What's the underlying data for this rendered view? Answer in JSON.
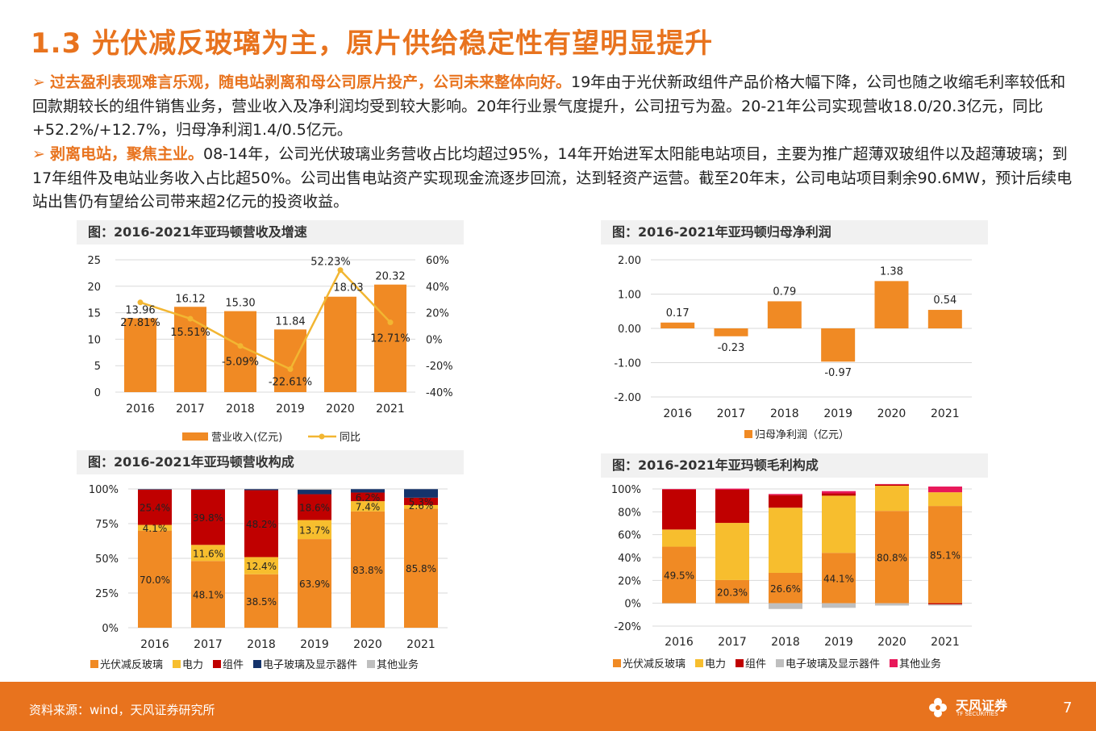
{
  "title": "1.3 光伏减反玻璃为主，原片供给稳定性有望明显提升",
  "bullets": [
    {
      "marker": "➢",
      "highlight": "过去盈利表现难言乐观，随电站剥离和母公司原片投产，公司未来整体向好。",
      "text": "19年由于光伏新政组件产品价格大幅下降，公司也随之收缩毛利率较低和回款期较长的组件销售业务，营业收入及净利润均受到较大影响。20年行业景气度提升，公司扭亏为盈。20-21年公司实现营收18.0/20.3亿元，同比+52.2%/+12.7%，归母净利润1.4/0.5亿元。"
    },
    {
      "marker": "➢",
      "highlight": "剥离电站，聚焦主业。",
      "text": "08-14年，公司光伏玻璃业务营收占比均超过95%，14年开始进军太阳能电站项目，主要为推广超薄双玻组件以及超薄玻璃；到17年组件及电站业务收入占比超50%。公司出售电站资产实现现金流逐步回流，达到轻资产运营。截至20年末，公司电站项目剩余90.6MW，预计后续电站出售仍有望给公司带来超2亿元的投资收益。"
    }
  ],
  "chart_data": [
    {
      "id": "revenue",
      "title": "图：2016-2021年亚玛顿营收及增速",
      "type": "bar",
      "categories": [
        "2016",
        "2017",
        "2018",
        "2019",
        "2020",
        "2021"
      ],
      "y_ticks": [
        "25",
        "20",
        "15",
        "10",
        "5",
        "0"
      ],
      "y2_ticks": [
        "60%",
        "40%",
        "20%",
        "0%",
        "-20%",
        "-40%"
      ],
      "ylim": [
        0,
        25
      ],
      "y2lim": [
        -40,
        60
      ],
      "series": [
        {
          "name": "营业收入(亿元)",
          "kind": "bar",
          "color": "#F08A24",
          "values": [
            13.96,
            16.12,
            15.3,
            11.84,
            18.03,
            20.32
          ],
          "labels": [
            "13.96",
            "16.12",
            "15.30",
            "11.84",
            "18.03",
            "20.32"
          ]
        },
        {
          "name": "同比",
          "kind": "line",
          "axis": "right",
          "color": "#F2B632",
          "values": [
            27.81,
            15.51,
            -5.09,
            -22.61,
            52.23,
            12.71
          ],
          "labels": [
            "27.81%",
            "15.51%",
            "-5.09%",
            "-22.61%",
            "52.23%",
            "12.71%"
          ]
        }
      ]
    },
    {
      "id": "profit",
      "title": "图：2016-2021年亚玛顿归母净利润",
      "type": "bar",
      "categories": [
        "2016",
        "2017",
        "2018",
        "2019",
        "2020",
        "2021"
      ],
      "y_ticks": [
        "2.00",
        "1.00",
        "0.00",
        "-1.00",
        "-2.00"
      ],
      "ylim": [
        -2,
        2
      ],
      "series": [
        {
          "name": "归母净利润（亿元）",
          "kind": "bar",
          "color": "#F08A24",
          "values": [
            0.17,
            -0.23,
            0.79,
            -0.97,
            1.38,
            0.54
          ],
          "labels": [
            "0.17",
            "-0.23",
            "0.79",
            "-0.97",
            "1.38",
            "0.54"
          ]
        }
      ]
    },
    {
      "id": "revmix",
      "title": "图：2016-2021年亚玛顿营收构成",
      "type": "bar",
      "stacked": true,
      "categories": [
        "2016",
        "2017",
        "2018",
        "2019",
        "2020",
        "2021"
      ],
      "y_ticks": [
        "100%",
        "75%",
        "50%",
        "25%",
        "0%"
      ],
      "ylim": [
        0,
        100
      ],
      "series": [
        {
          "name": "光伏减反玻璃",
          "color": "#F08A24",
          "values": [
            70.0,
            48.1,
            38.5,
            63.9,
            83.8,
            85.8
          ],
          "labels": [
            "70.0%",
            "48.1%",
            "38.5%",
            "63.9%",
            "83.8%",
            "85.8%"
          ]
        },
        {
          "name": "电力",
          "color": "#F7BE2E",
          "values": [
            4.1,
            11.6,
            12.4,
            13.7,
            7.4,
            2.6
          ],
          "labels": [
            "4.1%",
            "11.6%",
            "12.4%",
            "13.7%",
            "7.4%",
            "2.6%"
          ]
        },
        {
          "name": "组件",
          "color": "#C00000",
          "values": [
            25.4,
            39.8,
            48.2,
            18.6,
            6.2,
            5.3
          ],
          "labels": [
            "25.4%",
            "39.8%",
            "48.2%",
            "18.6%",
            "6.2%",
            "5.3%"
          ]
        },
        {
          "name": "电子玻璃及显示器件",
          "color": "#14336B",
          "values": [
            0.4,
            0.4,
            0.8,
            3.2,
            2.5,
            6.2
          ],
          "labels": [
            "",
            "",
            "",
            "",
            "",
            ""
          ]
        },
        {
          "name": "其他业务",
          "color": "#BFBFBF",
          "values": [
            0.1,
            0.1,
            0.1,
            0.6,
            0.1,
            0.1
          ],
          "labels": [
            "",
            "",
            "",
            "",
            "",
            ""
          ]
        }
      ]
    },
    {
      "id": "grossmix",
      "title": "图：2016-2021年亚玛顿毛利构成",
      "type": "bar",
      "stacked": true,
      "categories": [
        "2016",
        "2017",
        "2018",
        "2019",
        "2020",
        "2021"
      ],
      "y_ticks": [
        "100%",
        "80%",
        "60%",
        "40%",
        "20%",
        "0%",
        "-20%"
      ],
      "ylim": [
        -20,
        100
      ],
      "series": [
        {
          "name": "光伏减反玻璃",
          "color": "#F08A24",
          "values": [
            49.5,
            20.3,
            26.6,
            44.1,
            80.8,
            85.1
          ],
          "labels": [
            "49.5%",
            "20.3%",
            "26.6%",
            "44.1%",
            "80.8%",
            "85.1%"
          ]
        },
        {
          "name": "电力",
          "color": "#F7BE2E",
          "values": [
            15.0,
            50.0,
            57.0,
            50.0,
            22.0,
            12.0
          ],
          "labels": [
            "",
            "",
            "",
            "",
            "",
            ""
          ]
        },
        {
          "name": "组件",
          "color": "#C00000",
          "values": [
            35.0,
            29.0,
            11.0,
            2.0,
            1.0,
            -1.0
          ],
          "labels": [
            "",
            "",
            "",
            "",
            "",
            ""
          ]
        },
        {
          "name": "电子玻璃及显示器件",
          "color": "#BFBFBF",
          "values": [
            -0.3,
            -0.5,
            -5.0,
            -4.0,
            -2.0,
            -1.0
          ],
          "labels": [
            "",
            "",
            "",
            "",
            "",
            ""
          ]
        },
        {
          "name": "其他业务",
          "color": "#E8185A",
          "values": [
            0.5,
            1.0,
            1.0,
            2.0,
            0.5,
            5.0
          ],
          "labels": [
            "",
            "",
            "",
            "",
            "",
            ""
          ]
        }
      ]
    }
  ],
  "footer": {
    "source": "资料来源：wind，天风证券研究所",
    "brand": "天风证券",
    "brand_sub": "TF SECURITIES",
    "page": "7"
  }
}
